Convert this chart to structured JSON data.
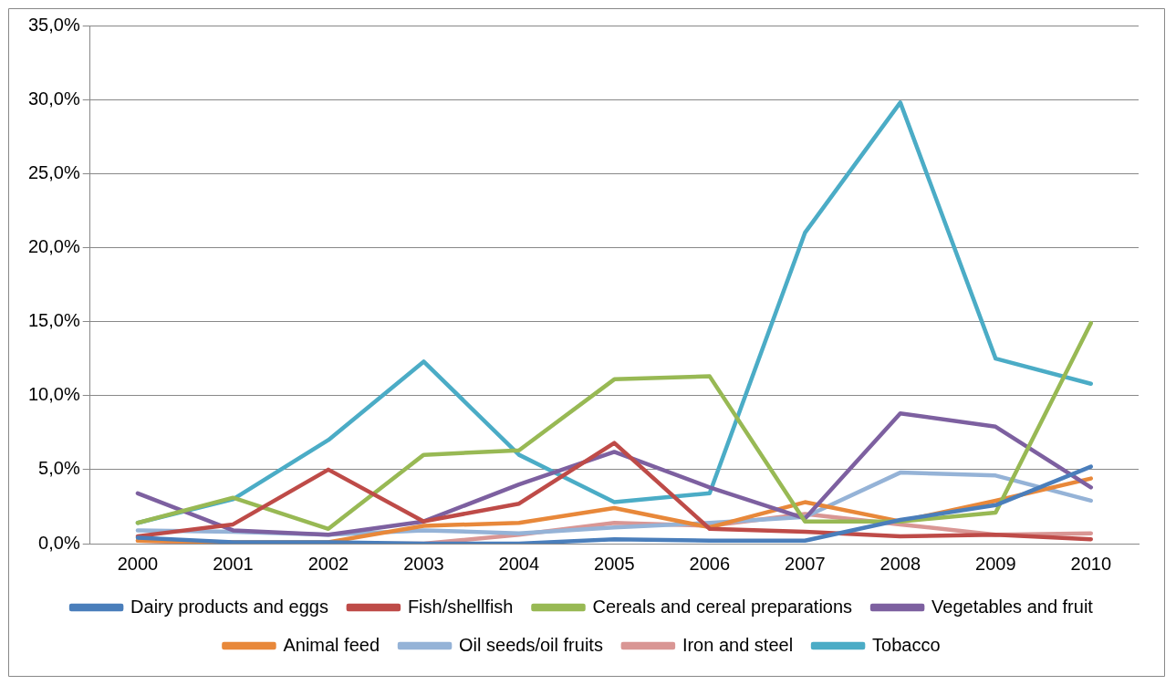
{
  "chart_data": {
    "type": "line",
    "categories": [
      "2000",
      "2001",
      "2002",
      "2003",
      "2004",
      "2005",
      "2006",
      "2007",
      "2008",
      "2009",
      "2010"
    ],
    "ylim": [
      0,
      35
    ],
    "yticks": [
      {
        "value": 0,
        "label": "0,0%"
      },
      {
        "value": 5,
        "label": "5,0%"
      },
      {
        "value": 10,
        "label": "10,0%"
      },
      {
        "value": 15,
        "label": "15,0%"
      },
      {
        "value": 20,
        "label": "20,0%"
      },
      {
        "value": 25,
        "label": "25,0%"
      },
      {
        "value": 30,
        "label": "30,0%"
      },
      {
        "value": 35,
        "label": "35,0%"
      }
    ],
    "grid": "y",
    "legend": "bottom",
    "marker": "none",
    "line_style": "solid",
    "series": [
      {
        "name": "Dairy products and eggs",
        "color": "#4a7ebb",
        "values": [
          0.4,
          0.1,
          0.1,
          0.0,
          0.0,
          0.3,
          0.2,
          0.2,
          1.6,
          2.6,
          5.2
        ]
      },
      {
        "name": "Fish/shellfish",
        "color": "#be4b48",
        "values": [
          0.5,
          1.3,
          5.0,
          1.5,
          2.7,
          6.8,
          1.0,
          0.8,
          0.5,
          0.6,
          0.3
        ]
      },
      {
        "name": "Cereals and cereal preparations",
        "color": "#98b954",
        "values": [
          1.4,
          3.1,
          1.0,
          6.0,
          6.3,
          11.1,
          11.3,
          1.5,
          1.5,
          2.1,
          14.9
        ]
      },
      {
        "name": "Vegetables and fruit",
        "color": "#7d60a0",
        "values": [
          3.4,
          0.9,
          0.6,
          1.5,
          4.0,
          6.2,
          3.8,
          1.7,
          8.8,
          7.9,
          3.8
        ]
      },
      {
        "name": "Animal feed",
        "color": "#e8883a",
        "values": [
          0.2,
          0.1,
          0.1,
          1.2,
          1.4,
          2.4,
          1.1,
          2.8,
          1.5,
          2.9,
          4.4
        ]
      },
      {
        "name": "Oil seeds/oil fruits",
        "color": "#95b3d7",
        "values": [
          0.9,
          0.8,
          0.6,
          0.9,
          0.7,
          1.1,
          1.4,
          1.8,
          4.8,
          4.6,
          2.9
        ]
      },
      {
        "name": "Iron and steel",
        "color": "#d99694",
        "values": [
          0.2,
          0.0,
          0.0,
          0.0,
          0.6,
          1.4,
          1.2,
          2.0,
          1.3,
          0.6,
          0.7
        ]
      },
      {
        "name": "Tobacco",
        "color": "#4bacc6",
        "values": [
          1.4,
          3.0,
          7.0,
          12.3,
          6.0,
          2.8,
          3.4,
          21.0,
          29.8,
          12.5,
          10.8
        ]
      }
    ]
  }
}
